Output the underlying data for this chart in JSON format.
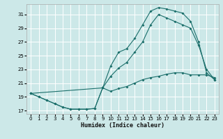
{
  "xlabel": "Humidex (Indice chaleur)",
  "bg_color": "#cce8e8",
  "grid_color": "#ffffff",
  "line_color": "#1a6e6a",
  "xlim": [
    -0.5,
    23.5
  ],
  "ylim": [
    16.5,
    32.5
  ],
  "xticks": [
    0,
    1,
    2,
    3,
    4,
    5,
    6,
    7,
    8,
    9,
    10,
    11,
    12,
    13,
    14,
    15,
    16,
    17,
    18,
    19,
    20,
    21,
    22,
    23
  ],
  "yticks": [
    17,
    19,
    21,
    23,
    25,
    27,
    29,
    31
  ],
  "line_bottom_x": [
    0,
    1,
    2,
    3,
    4,
    5,
    6,
    7,
    8,
    9,
    10,
    11,
    12,
    13,
    14,
    15,
    16,
    17,
    18,
    19,
    20,
    21,
    22,
    23
  ],
  "line_bottom_y": [
    19.5,
    19.0,
    18.5,
    18.0,
    17.5,
    17.2,
    17.2,
    17.2,
    17.3,
    20.3,
    19.8,
    20.2,
    20.5,
    21.0,
    21.5,
    21.8,
    22.0,
    22.3,
    22.5,
    22.5,
    22.2,
    22.2,
    22.2,
    21.8
  ],
  "line_mid_x": [
    0,
    1,
    2,
    3,
    4,
    5,
    6,
    7,
    8,
    9,
    10,
    11,
    12,
    13,
    14,
    15,
    16,
    17,
    18,
    19,
    20,
    21,
    22,
    23
  ],
  "line_mid_y": [
    19.5,
    19.0,
    18.5,
    18.0,
    17.5,
    17.2,
    17.2,
    17.2,
    17.3,
    20.3,
    22.0,
    23.2,
    24.0,
    25.5,
    27.0,
    29.5,
    31.0,
    30.5,
    30.0,
    29.5,
    29.0,
    26.5,
    23.0,
    21.5
  ],
  "line_top_x": [
    0,
    9,
    10,
    11,
    12,
    13,
    14,
    15,
    16,
    17,
    18,
    19,
    20,
    21,
    22,
    23
  ],
  "line_top_y": [
    19.5,
    20.3,
    23.5,
    25.5,
    26.0,
    27.5,
    29.5,
    31.5,
    32.0,
    31.8,
    31.5,
    31.2,
    30.0,
    27.0,
    22.5,
    21.5
  ]
}
